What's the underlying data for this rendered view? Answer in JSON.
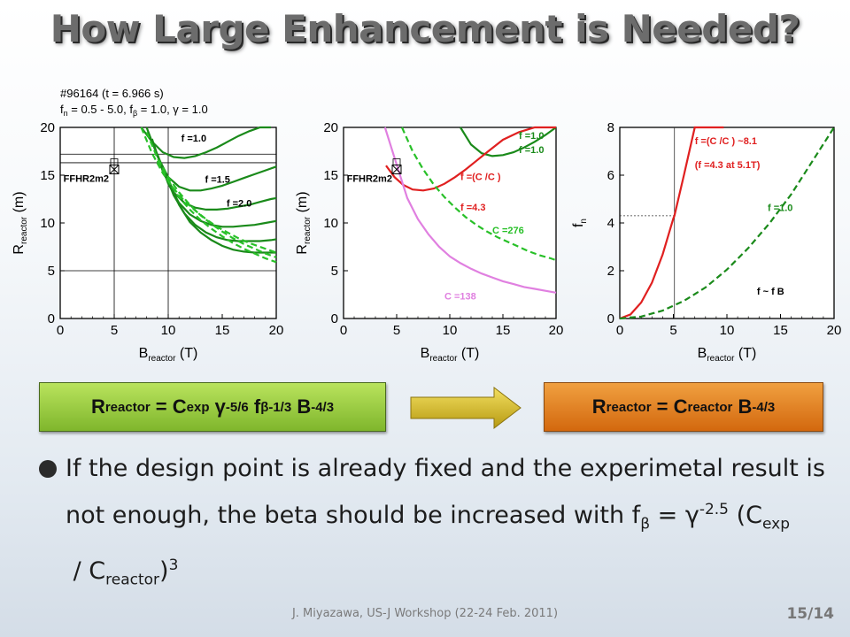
{
  "slide": {
    "title": "How Large Enhancement is Needed?",
    "footer": "J. Miyazawa, US-J Workshop (22-24 Feb. 2011)",
    "page": "15/14"
  },
  "formulas": {
    "left": {
      "R": "R",
      "r_sub": "reactor",
      "eq": " = C",
      "c_sub": "exp",
      "gamma": " γ",
      "g_sup": "-5/6",
      "f": " f",
      "f_sub": "β",
      "f_sup": "-1/3",
      "B": " B",
      "b_sup": "-4/3"
    },
    "right": {
      "R": "R",
      "r_sub": "reactor",
      "eq": " = C",
      "c_sub": "reactor",
      "B": " B",
      "b_sup": "-4/3"
    }
  },
  "bullet": {
    "text": "If the design point is already fixed and the experimetal result is not enough, the beta should be increased with f",
    "f_sub": "β",
    "mid": " = γ",
    "g_sup": "-2.5",
    "paren": " (C",
    "c_sub": "exp",
    "slash": " / C",
    "c2_sub": "reactor",
    "close": ")",
    "sup3": "3"
  },
  "colors": {
    "dark_green": "#1a8a1a",
    "light_green": "#28c028",
    "red": "#e02020",
    "violet": "#e080e0",
    "formula_green": "#8cc63f",
    "formula_orange": "#e07b1a"
  },
  "chart_data": [
    {
      "type": "line",
      "id": "chart1",
      "header_lines": [
        "#96164 (t = 6.966 s)",
        "f",
        "n",
        " = 0.5 - 5.0, f",
        "β",
        " = 1.0, γ = 1.0"
      ],
      "xlim": [
        0,
        20
      ],
      "ylim": [
        0,
        20
      ],
      "xticks": [
        0,
        5,
        10,
        15,
        20
      ],
      "yticks": [
        0,
        5,
        10,
        15,
        20
      ],
      "xlabel": {
        "main": "B",
        "sub": "reactor",
        "unit": " (T)"
      },
      "ylabel": {
        "main": "R",
        "sub": "reactor",
        "unit": " (m)"
      },
      "annotations": [
        {
          "text": "FFHR2m2",
          "x": 0.3,
          "y": 14.3
        },
        {
          "text": "f  =1.0",
          "x": 11.2,
          "y": 18.5
        },
        {
          "text": "f  =1.5",
          "x": 13.4,
          "y": 14.2
        },
        {
          "text": "f  =2.0",
          "x": 15.4,
          "y": 11.7
        }
      ],
      "design_point": {
        "x": 5.0,
        "y": 15.6
      },
      "grid_y": [
        16.3,
        17.2,
        5.0
      ],
      "grid_x": [
        5.0,
        10.0
      ],
      "curves": [
        {
          "name": "",
          "color": "#1a8a1a",
          "x": [
            7.5,
            8.5,
            9.5,
            10.5,
            11.5,
            12.5,
            13.5,
            14.5,
            15.5,
            16.5,
            17.5,
            18.5,
            19.5
          ],
          "y": [
            20.0,
            18.5,
            17.4,
            16.9,
            16.8,
            17.0,
            17.4,
            17.9,
            18.5,
            19.1,
            19.6,
            20.0,
            20.0
          ]
        },
        {
          "name": "",
          "color": "#1a8a1a",
          "x": [
            8.0,
            9.0,
            10.0,
            11.0,
            12.0,
            13.0,
            14.0,
            15.0,
            16.0,
            17.0,
            18.0,
            19.0,
            20.0
          ],
          "y": [
            20.0,
            17.0,
            14.8,
            13.8,
            13.4,
            13.4,
            13.6,
            13.9,
            14.3,
            14.7,
            15.1,
            15.5,
            15.9
          ]
        },
        {
          "name": "",
          "color": "#1a8a1a",
          "x": [
            8.5,
            9.5,
            10.5,
            11.5,
            12.5,
            13.5,
            14.5,
            15.5,
            16.5,
            17.5,
            18.5,
            19.5,
            20.0
          ],
          "y": [
            18.8,
            15.4,
            13.2,
            12.1,
            11.6,
            11.4,
            11.4,
            11.5,
            11.7,
            11.9,
            12.2,
            12.5,
            12.6
          ]
        },
        {
          "name": "",
          "color": "#1a8a1a",
          "x": [
            9.0,
            10.0,
            11.0,
            12.0,
            13.0,
            14.0,
            15.0,
            16.0,
            17.0,
            18.0,
            19.0,
            20.0
          ],
          "y": [
            17.2,
            14.1,
            12.1,
            10.9,
            10.2,
            9.8,
            9.6,
            9.6,
            9.7,
            9.8,
            10.0,
            10.2
          ]
        },
        {
          "name": "",
          "color": "#1a8a1a",
          "x": [
            9.5,
            10.5,
            11.5,
            12.5,
            13.5,
            14.5,
            15.5,
            16.5,
            17.5,
            18.5,
            19.5,
            20.0
          ],
          "y": [
            15.8,
            12.9,
            11.0,
            9.8,
            9.0,
            8.5,
            8.2,
            8.1,
            8.1,
            8.1,
            8.2,
            8.3
          ]
        },
        {
          "name": "",
          "color": "#1a8a1a",
          "x": [
            10.0,
            11.0,
            12.0,
            13.0,
            14.0,
            15.0,
            16.0,
            17.0,
            18.0,
            19.0,
            20.0
          ],
          "y": [
            14.6,
            11.9,
            10.1,
            9.0,
            8.2,
            7.6,
            7.2,
            7.0,
            6.9,
            6.9,
            6.9
          ]
        },
        {
          "name": "",
          "color": "#28c028",
          "x": [
            7.5,
            8.5,
            9.5,
            10.5,
            11.5,
            12.5,
            13.5,
            14.5,
            15.5,
            16.5,
            17.5,
            18.5,
            19.5,
            20.0
          ],
          "y": [
            20.0,
            17.3,
            15.2,
            13.6,
            12.3,
            11.3,
            10.4,
            9.6,
            9.0,
            8.4,
            7.9,
            7.5,
            7.1,
            6.9
          ]
        },
        {
          "name": "",
          "color": "#28c028",
          "x": [
            8.0,
            9.0,
            10.0,
            11.0,
            12.0,
            13.0,
            14.0,
            15.0,
            16.0,
            17.0,
            18.0,
            19.0,
            20.0
          ],
          "y": [
            19.5,
            16.8,
            14.8,
            13.2,
            11.9,
            10.8,
            9.9,
            9.1,
            8.4,
            7.8,
            7.3,
            6.8,
            6.4
          ]
        },
        {
          "name": "",
          "color": "#28c028",
          "x": [
            9.0,
            10.0,
            11.0,
            12.0,
            13.0,
            14.0,
            15.0,
            16.0,
            17.0,
            18.0,
            19.0,
            20.0
          ],
          "y": [
            16.5,
            14.4,
            12.7,
            11.4,
            10.3,
            9.4,
            8.6,
            7.9,
            7.3,
            6.8,
            6.3,
            5.9
          ]
        }
      ]
    },
    {
      "type": "line",
      "id": "chart2",
      "xlim": [
        0,
        20
      ],
      "ylim": [
        0,
        20
      ],
      "xticks": [
        0,
        5,
        10,
        15,
        20
      ],
      "yticks": [
        0,
        5,
        10,
        15,
        20
      ],
      "xlabel": {
        "main": "B",
        "sub": "reactor",
        "unit": " (T)"
      },
      "ylabel": {
        "main": "R",
        "sub": "reactor",
        "unit": " (m)"
      },
      "annotations": [
        {
          "text": "FFHR2m2",
          "x": 0.3,
          "y": 14.3
        },
        {
          "text": "f  =1.0",
          "x": 16.5,
          "y": 18.8,
          "color": "#1a8a1a"
        },
        {
          "text": "f  =1.0",
          "x": 16.5,
          "y": 17.3,
          "color": "#1a8a1a"
        },
        {
          "text": "f  =(C   /C        )",
          "x": 11.0,
          "y": 14.5,
          "color": "#e02020"
        },
        {
          "text": "f  =4.3",
          "x": 11.0,
          "y": 11.3,
          "color": "#e02020"
        },
        {
          "text": "C   =276",
          "x": 14.0,
          "y": 8.9,
          "color": "#28c028"
        },
        {
          "text": "C        =138",
          "x": 9.5,
          "y": 2.0,
          "color": "#e080e0"
        }
      ],
      "design_point": {
        "x": 5.0,
        "y": 15.6
      },
      "curves": [
        {
          "name": "",
          "color": "#1a8a1a",
          "x": [
            11.0,
            12.0,
            13.0,
            14.0,
            15.0,
            16.0,
            17.0,
            18.0,
            19.0,
            20.0
          ],
          "y": [
            20.0,
            18.2,
            17.3,
            17.0,
            17.1,
            17.4,
            17.9,
            18.5,
            19.2,
            20.0
          ]
        },
        {
          "name": "",
          "color": "#e02020",
          "x": [
            4.0,
            4.8,
            5.6,
            6.5,
            7.5,
            8.5,
            9.5,
            10.5,
            11.5,
            12.5,
            13.5,
            15.0,
            16.5,
            18.0,
            19.5,
            20.0
          ],
          "y": [
            16.0,
            14.8,
            14.0,
            13.5,
            13.4,
            13.6,
            14.1,
            14.8,
            15.6,
            16.5,
            17.4,
            18.7,
            19.5,
            20.0,
            20.0,
            20.0
          ]
        },
        {
          "name": "",
          "color": "#28c028",
          "x": [
            5.5,
            6.5,
            7.5,
            8.5,
            9.5,
            10.5,
            11.5,
            12.5,
            13.5,
            14.5,
            15.5,
            16.5,
            17.5,
            18.5,
            19.5,
            20.0
          ],
          "y": [
            20.0,
            17.5,
            15.6,
            14.0,
            12.7,
            11.6,
            10.6,
            9.8,
            9.1,
            8.5,
            8.0,
            7.5,
            7.0,
            6.6,
            6.3,
            6.1
          ]
        },
        {
          "name": "",
          "color": "#e080e0",
          "x": [
            3.9,
            5.0,
            6.0,
            7.0,
            8.0,
            9.0,
            10.0,
            11.0,
            12.0,
            13.0,
            14.0,
            15.0,
            16.0,
            17.0,
            18.0,
            19.0,
            20.0
          ],
          "y": [
            20.0,
            16.1,
            12.6,
            10.4,
            8.8,
            7.5,
            6.5,
            5.8,
            5.2,
            4.7,
            4.3,
            3.9,
            3.6,
            3.3,
            3.1,
            2.9,
            2.7
          ]
        }
      ]
    },
    {
      "type": "line",
      "id": "chart3",
      "xlim": [
        0,
        20
      ],
      "ylim": [
        0,
        8
      ],
      "xticks": [
        0,
        5,
        10,
        15,
        20
      ],
      "yticks": [
        0,
        2,
        4,
        6,
        8
      ],
      "xlabel": {
        "main": "B",
        "sub": "reactor",
        "unit": " (T)"
      },
      "ylabel": {
        "main": "f",
        "sub": "n",
        "unit": ""
      },
      "annotations": [
        {
          "text": "f  =(C   /C        )  ~8.1",
          "x": 7.0,
          "y": 7.3,
          "color": "#e02020"
        },
        {
          "text": "(f  =4.3 at 5.1T)",
          "x": 7.0,
          "y": 6.3,
          "color": "#e02020"
        },
        {
          "text": "f  =1.0",
          "x": 13.8,
          "y": 4.5,
          "color": "#1a8a1a"
        },
        {
          "text": "f  ~ f  B",
          "x": 12.8,
          "y": 1.0,
          "color": "#000000"
        }
      ],
      "guide": {
        "x": 5.1,
        "y": 4.3
      },
      "curves": [
        {
          "name": "",
          "color": "#e02020",
          "x": [
            0,
            1,
            2,
            3,
            4,
            5,
            5.1,
            6,
            7,
            8,
            9,
            9.7
          ],
          "y": [
            0,
            0.17,
            0.67,
            1.5,
            2.68,
            4.19,
            4.3,
            6.03,
            8.2,
            8.2,
            8.2,
            8.2
          ]
        },
        {
          "name": "",
          "color": "#1a8a1a",
          "x": [
            0,
            2,
            4,
            6,
            8,
            10,
            12,
            14,
            16,
            18,
            20
          ],
          "y": [
            0,
            0.08,
            0.33,
            0.74,
            1.3,
            2.05,
            2.95,
            4.0,
            5.2,
            6.6,
            8.1
          ]
        }
      ]
    }
  ]
}
